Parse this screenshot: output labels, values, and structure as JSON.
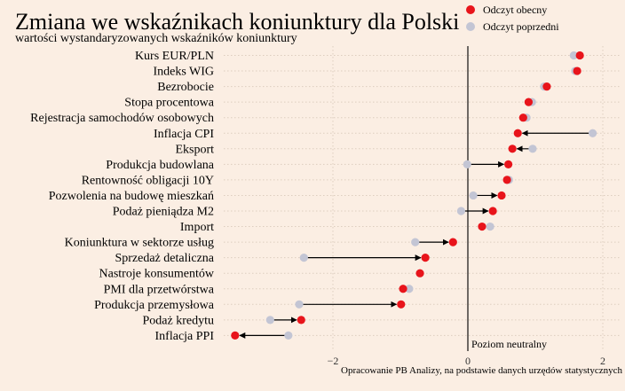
{
  "chart_data": {
    "type": "dot",
    "title": "Zmiana we wskaźnikach koniunktury dla Polski",
    "subtitle": "wartości wystandaryzowanych wskaźników koniunktury",
    "source": "Opracowanie PB Analizy, na podstawie danych urzędów statystycznych",
    "neutral_label": "Poziom neutralny",
    "xlim": [
      -3.4,
      2.2
    ],
    "xticks": [
      -2,
      0,
      2
    ],
    "grid": true,
    "legend_position": "top-right",
    "series": [
      {
        "name": "Odczyt obecny",
        "color": "#e8141b"
      },
      {
        "name": "Odczyt poprzedni",
        "color": "#c3c5d4"
      }
    ],
    "categories": [
      "Kurs EUR/PLN",
      "Indeks WIG",
      "Bezrobocie",
      "Stopa procentowa",
      "Rejestracja samochodów osobowych",
      "Inflacja CPI",
      "Eksport",
      "Produkcja budowlana",
      "Rentowność obligacji 10Y",
      "Pozwolenia na budowę mieszkań",
      "Podaż pieniądza M2",
      "Import",
      "Koniunktura w sektorze usług",
      "Sprzedaż detaliczna",
      "Nastroje konsumentów",
      "PMI dla przetwórstwa",
      "Produkcja przemysłowa",
      "Podaż kredytu",
      "Inflacja PPI"
    ],
    "current": [
      1.66,
      1.62,
      1.17,
      0.9,
      0.82,
      0.74,
      0.66,
      0.6,
      0.58,
      0.5,
      0.37,
      0.21,
      -0.22,
      -0.63,
      -0.71,
      -0.96,
      -0.99,
      -2.47,
      -3.45
    ],
    "previous": [
      1.57,
      1.59,
      1.13,
      0.95,
      0.87,
      1.85,
      0.96,
      -0.01,
      0.61,
      0.08,
      -0.1,
      0.33,
      -0.78,
      -2.43,
      -0.71,
      -0.87,
      -2.5,
      -2.93,
      -2.66
    ]
  }
}
